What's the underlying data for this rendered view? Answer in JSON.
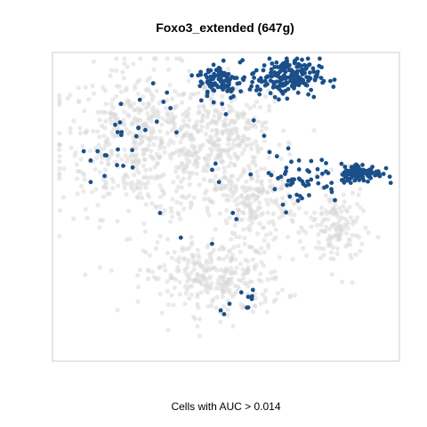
{
  "chart_data": {
    "type": "scatter",
    "title": "Foxo3_extended (647g)",
    "xlabel": "Cells with AUC > 0.014",
    "ylabel": "",
    "grid": false,
    "legend": "none",
    "colors": {
      "background_cells": "#d9d9d9",
      "positive_cells": "#1a4f8a",
      "frame": "#cccccc"
    },
    "series": [
      {
        "name": "",
        "role": "background",
        "color": "#d9d9d9",
        "clusters": [
          {
            "center": [
              26,
              71
            ],
            "spread": [
              12,
              12
            ],
            "n": 520
          },
          {
            "center": [
              47,
              66
            ],
            "spread": [
              9,
              11
            ],
            "n": 260
          },
          {
            "center": [
              47,
              27
            ],
            "spread": [
              10,
              6
            ],
            "n": 300
          },
          {
            "center": [
              59,
              50
            ],
            "spread": [
              6,
              6
            ],
            "n": 160
          },
          {
            "center": [
              82,
              43
            ],
            "spread": [
              4,
              7
            ],
            "n": 140
          },
          {
            "center": [
              53,
              79
            ],
            "spread": [
              5,
              6
            ],
            "n": 90
          }
        ]
      },
      {
        "name": "",
        "role": "positive",
        "color": "#1a4f8a",
        "clusters": [
          {
            "center": [
              67,
              92
            ],
            "spread": [
              5,
              3
            ],
            "n": 200
          },
          {
            "center": [
              48,
              91
            ],
            "spread": [
              3,
              3
            ],
            "n": 90
          },
          {
            "center": [
              89,
              61
            ],
            "spread": [
              3,
              1.5
            ],
            "n": 110
          },
          {
            "center": [
              71,
              59
            ],
            "spread": [
              6,
              4
            ],
            "n": 55
          },
          {
            "center": [
              21,
              74
            ],
            "spread": [
              7,
              7
            ],
            "n": 20
          },
          {
            "center": [
              54,
              20
            ],
            "spread": [
              3,
              2
            ],
            "n": 10
          }
        ],
        "points": [
          [
            33,
            87
          ],
          [
            32,
            84
          ],
          [
            34,
            82
          ],
          [
            29,
            90
          ],
          [
            47,
            64
          ],
          [
            46,
            62
          ],
          [
            48,
            58
          ],
          [
            31,
            48
          ],
          [
            37,
            40
          ],
          [
            46,
            38
          ],
          [
            11,
            65
          ],
          [
            13,
            68
          ],
          [
            9,
            68
          ],
          [
            11,
            58
          ],
          [
            15,
            60
          ],
          [
            52,
            48
          ],
          [
            53,
            46
          ],
          [
            50,
            80
          ],
          [
            58,
            78
          ],
          [
            61,
            73
          ]
        ]
      }
    ]
  }
}
